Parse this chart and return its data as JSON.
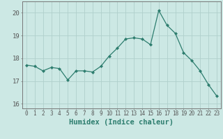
{
  "x": [
    0,
    1,
    2,
    3,
    4,
    5,
    6,
    7,
    8,
    9,
    10,
    11,
    12,
    13,
    14,
    15,
    16,
    17,
    18,
    19,
    20,
    21,
    22,
    23
  ],
  "y": [
    17.7,
    17.65,
    17.45,
    17.6,
    17.55,
    17.05,
    17.45,
    17.45,
    17.4,
    17.65,
    18.1,
    18.45,
    18.85,
    18.9,
    18.85,
    18.6,
    20.1,
    19.45,
    19.1,
    18.25,
    17.9,
    17.45,
    16.85,
    16.35
  ],
  "line_color": "#2d7d6e",
  "marker": "D",
  "marker_size": 2.0,
  "bg_color": "#cce8e4",
  "grid_color": "#b0d0cc",
  "spine_color": "#777777",
  "xlabel": "Humidex (Indice chaleur)",
  "xlabel_fontsize": 7.5,
  "xlabel_color": "#2d7d6e",
  "ylim": [
    15.8,
    20.5
  ],
  "yticks": [
    16,
    17,
    18,
    19,
    20
  ],
  "xtick_fontsize": 5.5,
  "ytick_fontsize": 6.5,
  "tick_color": "#555555"
}
